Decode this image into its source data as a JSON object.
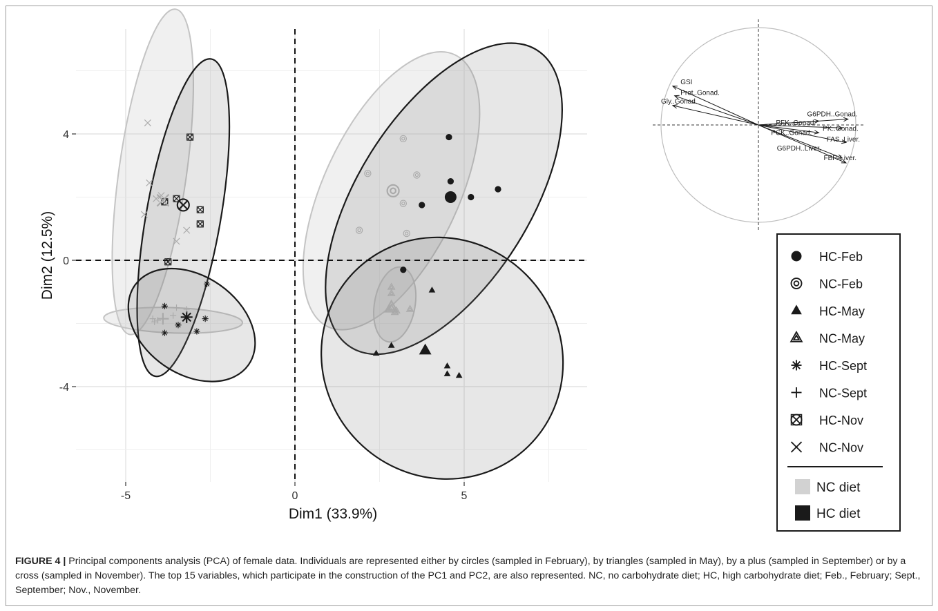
{
  "chart_data": {
    "type": "scatter",
    "xlabel": "Dim1 (33.9%)",
    "ylabel": "Dim2 (12.5%)",
    "xlim": [
      -5.5,
      8.5
    ],
    "ylim": [
      -7.0,
      7.5
    ],
    "xticks": [
      -5,
      0,
      5
    ],
    "yticks": [
      -4,
      0,
      4
    ],
    "grid": true,
    "reference_lines": {
      "x": 0,
      "y": 0,
      "style": "dashed"
    },
    "groups": [
      {
        "name": "HC-Feb",
        "diet": "HC",
        "marker": "filled-circle",
        "points": [
          [
            4.55,
            3.9
          ],
          [
            4.6,
            2.5
          ],
          [
            5.2,
            2.0
          ],
          [
            6.0,
            2.25
          ],
          [
            3.75,
            1.75
          ],
          [
            3.2,
            -0.3
          ]
        ],
        "centroid": [
          4.6,
          2.0
        ]
      },
      {
        "name": "NC-Feb",
        "diet": "NC",
        "marker": "double-circle",
        "points": [
          [
            3.2,
            3.85
          ],
          [
            2.15,
            2.75
          ],
          [
            3.6,
            2.7
          ],
          [
            3.2,
            1.8
          ],
          [
            1.9,
            0.95
          ],
          [
            3.3,
            0.85
          ]
        ],
        "centroid": [
          2.9,
          2.2
        ]
      },
      {
        "name": "HC-May",
        "diet": "HC",
        "marker": "filled-triangle",
        "points": [
          [
            4.05,
            -0.95
          ],
          [
            2.4,
            -2.95
          ],
          [
            2.85,
            -2.7
          ],
          [
            4.5,
            -3.35
          ],
          [
            4.5,
            -3.6
          ],
          [
            4.85,
            -3.65
          ]
        ],
        "centroid": [
          3.85,
          -2.85
        ]
      },
      {
        "name": "NC-May",
        "diet": "NC",
        "marker": "double-triangle",
        "points": [
          [
            2.85,
            -0.85
          ],
          [
            2.85,
            -1.05
          ],
          [
            2.8,
            -1.55
          ],
          [
            3.0,
            -1.6
          ],
          [
            3.4,
            -1.55
          ],
          [
            2.95,
            -1.65
          ]
        ],
        "centroid": [
          2.85,
          -1.5
        ]
      },
      {
        "name": "HC-Sept",
        "diet": "HC",
        "marker": "asterisk",
        "points": [
          [
            -2.6,
            -0.75
          ],
          [
            -3.85,
            -1.45
          ],
          [
            -2.65,
            -1.85
          ],
          [
            -3.45,
            -2.05
          ],
          [
            -3.85,
            -2.3
          ],
          [
            -2.9,
            -2.25
          ]
        ],
        "centroid": [
          -3.2,
          -1.8
        ]
      },
      {
        "name": "NC-Sept",
        "diet": "NC",
        "marker": "plus",
        "points": [
          [
            -3.5,
            -1.5
          ],
          [
            -4.2,
            -1.85
          ],
          [
            -4.05,
            -1.9
          ],
          [
            -4.15,
            -1.95
          ],
          [
            -3.6,
            -1.75
          ],
          [
            -3.2,
            -1.55
          ]
        ],
        "centroid": [
          -3.9,
          -1.85
        ]
      },
      {
        "name": "HC-Nov",
        "diet": "HC",
        "marker": "circled-cross",
        "points": [
          [
            -3.1,
            3.9
          ],
          [
            -3.5,
            1.95
          ],
          [
            -3.85,
            1.85
          ],
          [
            -2.8,
            1.6
          ],
          [
            -2.8,
            1.15
          ],
          [
            -3.75,
            -0.05
          ]
        ],
        "centroid": [
          -3.3,
          1.75
        ]
      },
      {
        "name": "NC-Nov",
        "diet": "NC",
        "marker": "cross",
        "points": [
          [
            -4.35,
            4.35
          ],
          [
            -4.3,
            2.45
          ],
          [
            -4.1,
            1.95
          ],
          [
            -3.95,
            2.05
          ],
          [
            -4.45,
            1.45
          ],
          [
            -3.2,
            0.95
          ],
          [
            -3.5,
            0.6
          ]
        ],
        "centroid": [
          -3.9,
          1.9
        ]
      }
    ],
    "ellipses": [
      {
        "group": "NC-Nov",
        "diet": "NC",
        "center": [
          -4.2,
          2.8
        ],
        "rx": 1.0,
        "ry": 5.2,
        "angle": 8
      },
      {
        "group": "HC-Nov",
        "diet": "HC",
        "center": [
          -3.3,
          1.35
        ],
        "rx": 1.1,
        "ry": 5.1,
        "angle": 10
      },
      {
        "group": "HC-Sept",
        "diet": "HC",
        "center": [
          -3.05,
          -2.05
        ],
        "rx": 2.05,
        "ry": 1.55,
        "angle": 35
      },
      {
        "group": "NC-Sept",
        "diet": "NC",
        "center": [
          -3.6,
          -1.9
        ],
        "rx": 2.05,
        "ry": 0.4,
        "angle": 2
      },
      {
        "group": "NC-Feb",
        "diet": "NC",
        "center": [
          2.85,
          2.2
        ],
        "rx": 2.0,
        "ry": 4.75,
        "angle": 25
      },
      {
        "group": "HC-Feb",
        "diet": "HC",
        "center": [
          4.4,
          1.95
        ],
        "rx": 2.55,
        "ry": 5.55,
        "angle": 32
      },
      {
        "group": "NC-May",
        "diet": "NC",
        "center": [
          2.95,
          -1.4
        ],
        "rx": 0.6,
        "ry": 1.2,
        "angle": 10
      },
      {
        "group": "HC-May",
        "diet": "HC",
        "center": [
          4.35,
          -3.1
        ],
        "rx": 3.5,
        "ry": 3.9,
        "angle": -45
      }
    ],
    "diet_colors": {
      "NC": "#d2d2d2",
      "HC": "#1a1a1a"
    },
    "legend": {
      "position": "right",
      "markers": [
        "HC-Feb",
        "NC-Feb",
        "HC-May",
        "NC-May",
        "HC-Sept",
        "NC-Sept",
        "HC-Nov",
        "NC-Nov"
      ],
      "fills": [
        {
          "label": "NC diet",
          "color": "#d2d2d2"
        },
        {
          "label": "HC diet",
          "color": "#1a1a1a"
        }
      ]
    },
    "variables_circle": {
      "position": "top-right",
      "arrows": [
        {
          "label": "GSI",
          "x": -0.88,
          "y": 0.4
        },
        {
          "label": "Prot..Gonad.",
          "x": -0.86,
          "y": 0.3
        },
        {
          "label": "Gly..Gonad.",
          "x": -0.88,
          "y": 0.2
        },
        {
          "label": "G6PDH..Gonad.",
          "x": 0.92,
          "y": 0.06
        },
        {
          "label": "PFK..Gonad.",
          "x": 0.62,
          "y": 0.04
        },
        {
          "label": "PK..Gonad.",
          "x": 0.86,
          "y": -0.03
        },
        {
          "label": "PCK..Gonad.",
          "x": 0.62,
          "y": -0.08
        },
        {
          "label": "FAS..Liver.",
          "x": 0.9,
          "y": -0.18
        },
        {
          "label": "G6PDH..Liver.",
          "x": 0.86,
          "y": -0.34
        },
        {
          "label": "FBP..Liver.",
          "x": 0.9,
          "y": -0.39
        }
      ]
    }
  },
  "caption": {
    "label": "FIGURE 4 |",
    "text": " Principal components analysis (PCA) of female data. Individuals are represented either by circles (sampled in February), by triangles (sampled in May), by a plus (sampled in September) or by a cross (sampled in November). The top 15 variables, which participate in the construction of the PC1 and PC2, are also represented. NC, no carbohydrate diet; HC, high carbohydrate diet; Feb., February; Sept., September; Nov., November."
  }
}
